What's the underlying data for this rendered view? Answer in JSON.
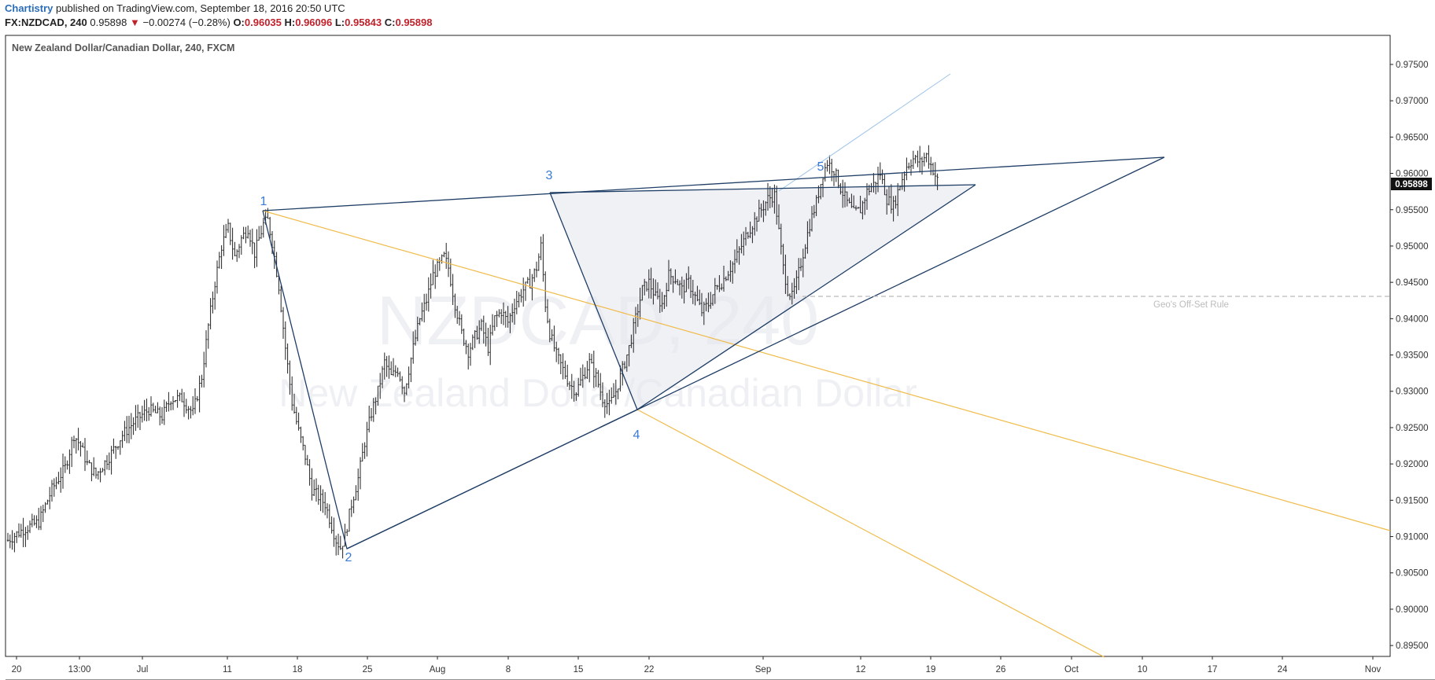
{
  "header": {
    "publisher": "Chartistry",
    "published_text": "published on TradingView.com, September 18, 2016 20:50 UTC",
    "symbol": "FX:NZDCAD, 240",
    "last": "0.95898",
    "change_arrow": "▼",
    "change": "−0.00274 (−0.28%)",
    "o_label": "O:",
    "o_value": "0.96035",
    "h_label": "H:",
    "h_value": "0.96096",
    "l_label": "L:",
    "l_value": "0.95843",
    "c_label": "C:",
    "c_value": "0.95898"
  },
  "colors": {
    "brand": "#2a6db8",
    "negative": "#c0222b",
    "pattern_line": "#1f3e66",
    "label_blue": "#3a7bd5",
    "channel_orange": "#f0bb4a",
    "bars": "#222222"
  },
  "chart_data": {
    "type": "ohlc",
    "title": "New Zealand Dollar/Canadian Dollar, 240, FXCM",
    "watermark_symbol": "NZDCAD, 240",
    "watermark_name": "New Zealand Dollar/Canadian Dollar",
    "y_axis": {
      "ticks": [
        "0.97500",
        "0.97000",
        "0.96500",
        "0.96000",
        "0.95500",
        "0.95000",
        "0.94500",
        "0.94000",
        "0.93500",
        "0.93000",
        "0.92500",
        "0.92000",
        "0.91500",
        "0.91000",
        "0.90500",
        "0.90000",
        "0.89500"
      ],
      "ylim": [
        0.8935,
        0.979
      ]
    },
    "x_axis": {
      "ticks": [
        "20",
        "13:00",
        "Jul",
        "11",
        "18",
        "25",
        "Aug",
        "8",
        "15",
        "22",
        "Sep",
        "12",
        "19",
        "26",
        "Oct",
        "10",
        "17",
        "24",
        "Nov"
      ]
    },
    "last_price": "0.95898",
    "pattern_points": [
      {
        "label": "1",
        "date": "2016-07-14",
        "price": 0.9553
      },
      {
        "label": "2",
        "date": "2016-07-22",
        "price": 0.9083
      },
      {
        "label": "3",
        "date": "2016-08-11",
        "price": 0.9578
      },
      {
        "label": "4",
        "date": "2016-08-20",
        "price": 0.9277
      },
      {
        "label": "5",
        "date": "2016-09-08",
        "price": 0.962
      }
    ],
    "annotations": [
      {
        "text": "Geo's Off-Set Rule",
        "price": 0.9435
      }
    ],
    "price_path": [
      [
        0,
        0.9095
      ],
      [
        7,
        0.911
      ],
      [
        14,
        0.912
      ],
      [
        20,
        0.9165
      ],
      [
        26,
        0.9195
      ],
      [
        30,
        0.924
      ],
      [
        33,
        0.9225
      ],
      [
        36,
        0.92
      ],
      [
        40,
        0.9185
      ],
      [
        46,
        0.921
      ],
      [
        52,
        0.924
      ],
      [
        58,
        0.926
      ],
      [
        64,
        0.9275
      ],
      [
        70,
        0.9265
      ],
      [
        74,
        0.929
      ],
      [
        79,
        0.929
      ],
      [
        84,
        0.927
      ],
      [
        88,
        0.932
      ],
      [
        91,
        0.939
      ],
      [
        94,
        0.945
      ],
      [
        97,
        0.95
      ],
      [
        100,
        0.9525
      ],
      [
        103,
        0.9485
      ],
      [
        106,
        0.951
      ],
      [
        109,
        0.9525
      ],
      [
        112,
        0.949
      ],
      [
        116,
        0.953
      ],
      [
        118,
        0.9535
      ],
      [
        120,
        0.9505
      ],
      [
        123,
        0.9445
      ],
      [
        126,
        0.936
      ],
      [
        129,
        0.9285
      ],
      [
        132,
        0.9245
      ],
      [
        135,
        0.921
      ],
      [
        138,
        0.9165
      ],
      [
        141,
        0.9155
      ],
      [
        144,
        0.9145
      ],
      [
        146,
        0.9125
      ],
      [
        149,
        0.9095
      ],
      [
        151,
        0.9085
      ],
      [
        153,
        0.91
      ],
      [
        156,
        0.9145
      ],
      [
        159,
        0.918
      ],
      [
        162,
        0.923
      ],
      [
        165,
        0.927
      ],
      [
        168,
        0.93
      ],
      [
        171,
        0.934
      ],
      [
        174,
        0.932
      ],
      [
        177,
        0.933
      ],
      [
        180,
        0.93
      ],
      [
        184,
        0.936
      ],
      [
        187,
        0.94
      ],
      [
        190,
        0.9425
      ],
      [
        193,
        0.946
      ],
      [
        196,
        0.9475
      ],
      [
        198,
        0.9485
      ],
      [
        200,
        0.947
      ],
      [
        203,
        0.942
      ],
      [
        206,
        0.938
      ],
      [
        209,
        0.9355
      ],
      [
        212,
        0.9375
      ],
      [
        215,
        0.939
      ],
      [
        218,
        0.936
      ],
      [
        221,
        0.94
      ],
      [
        224,
        0.941
      ],
      [
        227,
        0.9395
      ],
      [
        230,
        0.942
      ],
      [
        234,
        0.944
      ],
      [
        237,
        0.945
      ],
      [
        240,
        0.947
      ],
      [
        242,
        0.95
      ],
      [
        244,
        0.942
      ],
      [
        246,
        0.938
      ],
      [
        249,
        0.935
      ],
      [
        252,
        0.933
      ],
      [
        255,
        0.931
      ],
      [
        258,
        0.93
      ],
      [
        261,
        0.932
      ],
      [
        264,
        0.934
      ],
      [
        267,
        0.932
      ],
      [
        270,
        0.929
      ],
      [
        273,
        0.928
      ],
      [
        276,
        0.93
      ],
      [
        279,
        0.933
      ],
      [
        282,
        0.936
      ],
      [
        285,
        0.94
      ],
      [
        288,
        0.944
      ],
      [
        291,
        0.945
      ],
      [
        294,
        0.943
      ],
      [
        297,
        0.942
      ],
      [
        300,
        0.946
      ],
      [
        303,
        0.9455
      ],
      [
        306,
        0.944
      ],
      [
        309,
        0.945
      ],
      [
        312,
        0.943
      ],
      [
        315,
        0.941
      ],
      [
        318,
        0.942
      ],
      [
        321,
        0.944
      ],
      [
        324,
        0.945
      ],
      [
        327,
        0.9465
      ],
      [
        330,
        0.948
      ],
      [
        333,
        0.95
      ],
      [
        336,
        0.952
      ],
      [
        339,
        0.9535
      ],
      [
        342,
        0.955
      ],
      [
        345,
        0.9565
      ],
      [
        348,
        0.957
      ],
      [
        350,
        0.952
      ],
      [
        352,
        0.947
      ],
      [
        354,
        0.944
      ],
      [
        356,
        0.943
      ],
      [
        358,
        0.945
      ],
      [
        361,
        0.949
      ],
      [
        364,
        0.953
      ],
      [
        367,
        0.956
      ],
      [
        370,
        0.96
      ],
      [
        372,
        0.9615
      ],
      [
        375,
        0.9605
      ],
      [
        378,
        0.958
      ],
      [
        381,
        0.956
      ],
      [
        384,
        0.9545
      ],
      [
        387,
        0.955
      ],
      [
        390,
        0.9575
      ],
      [
        393,
        0.9585
      ],
      [
        396,
        0.96
      ],
      [
        399,
        0.9565
      ],
      [
        402,
        0.9555
      ],
      [
        405,
        0.9585
      ],
      [
        408,
        0.961
      ],
      [
        411,
        0.962
      ],
      [
        414,
        0.9615
      ],
      [
        417,
        0.9625
      ],
      [
        420,
        0.9605
      ],
      [
        422,
        0.959
      ]
    ]
  }
}
